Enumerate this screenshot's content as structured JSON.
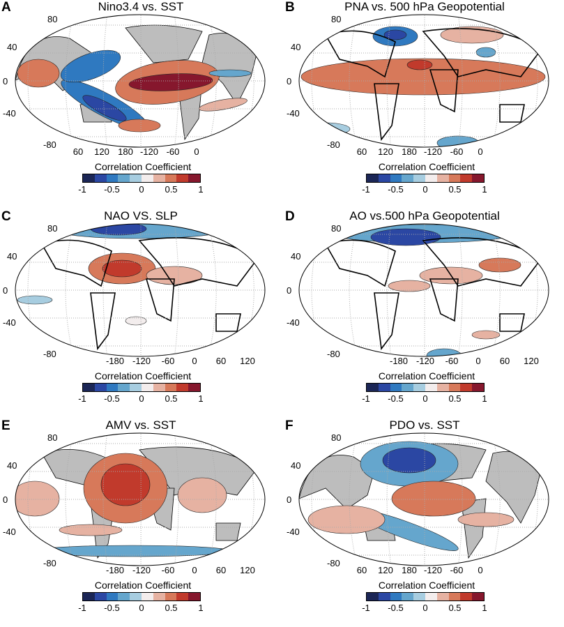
{
  "colorbar": {
    "label": "Correlation Coefficient",
    "ticks": [
      "-1",
      "-0.5",
      "0",
      "0.5",
      "1"
    ],
    "colors": [
      "#1b2656",
      "#2b47a3",
      "#2f79c0",
      "#65a6cd",
      "#a7cde0",
      "#f3eded",
      "#e6b2a2",
      "#d7795a",
      "#c13a2c",
      "#86172d"
    ]
  },
  "land_color": "#bdbdbd",
  "lat_ticks": [
    "80",
    "40",
    "0",
    "-40",
    "-80"
  ],
  "panels": [
    {
      "label": "A",
      "title": "Nino3.4 vs. SST",
      "lon_ticks": [
        "60",
        "120",
        "180",
        "-120",
        "-60",
        "0"
      ],
      "land_shaded": true
    },
    {
      "label": "B",
      "title": "PNA vs. 500 hPa Geopotential",
      "lon_ticks": [
        "60",
        "120",
        "180",
        "-120",
        "-60",
        "0"
      ],
      "land_shaded": false
    },
    {
      "label": "C",
      "title": "NAO VS. SLP",
      "lon_ticks": [
        "-180",
        "-120",
        "-60",
        "0",
        "60",
        "120"
      ],
      "land_shaded": false
    },
    {
      "label": "D",
      "title": "AO vs.500 hPa Geopotential",
      "lon_ticks": [
        "-180",
        "-120",
        "-60",
        "0",
        "60",
        "120"
      ],
      "land_shaded": false
    },
    {
      "label": "E",
      "title": "AMV vs. SST",
      "lon_ticks": [
        "-180",
        "-120",
        "-60",
        "0",
        "60",
        "120"
      ],
      "land_shaded": true
    },
    {
      "label": "F",
      "title": "PDO vs. SST",
      "lon_ticks": [
        "60",
        "120",
        "180",
        "-120",
        "-60",
        "0"
      ],
      "land_shaded": true
    }
  ]
}
